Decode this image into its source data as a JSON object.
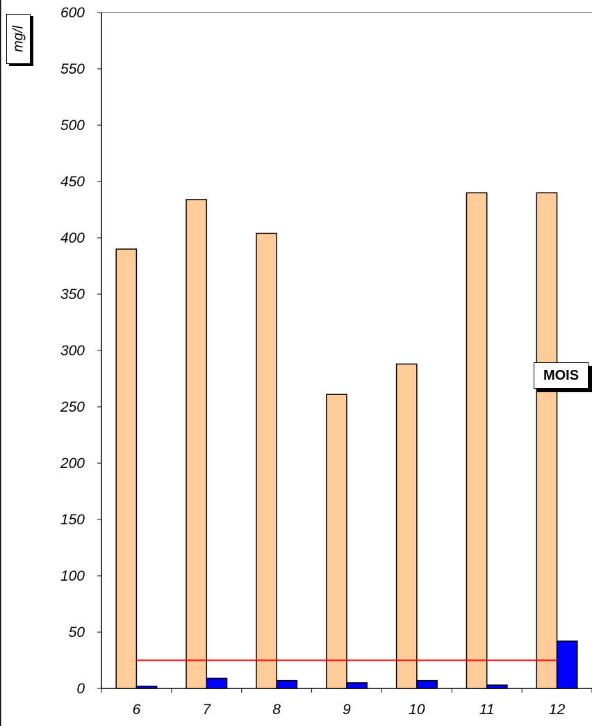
{
  "chart_data": {
    "type": "bar",
    "categories": [
      "6",
      "7",
      "8",
      "9",
      "10",
      "11",
      "12"
    ],
    "series": [
      {
        "values": [
          390,
          434,
          404,
          261,
          288,
          440,
          440
        ],
        "color": "#FFCC99"
      },
      {
        "values": [
          2,
          9,
          7,
          5,
          7,
          3,
          42
        ],
        "color": "#0000FF"
      }
    ],
    "reference_line": {
      "value": 25,
      "color": "#FF0000"
    },
    "ylim": [
      0,
      600
    ],
    "yticks": [
      0,
      50,
      100,
      150,
      200,
      250,
      300,
      350,
      400,
      450,
      500,
      550,
      600
    ],
    "ylabel": "mg/l",
    "xlabel": "MOIS",
    "grid": false
  }
}
